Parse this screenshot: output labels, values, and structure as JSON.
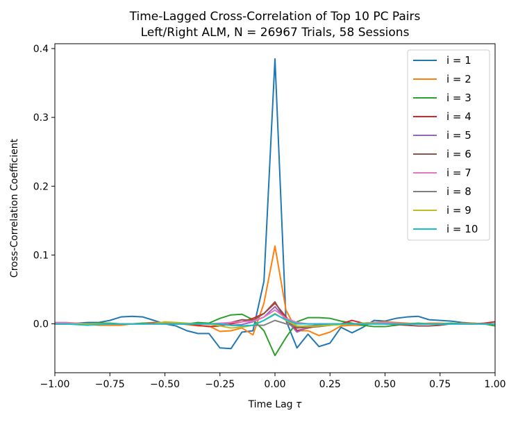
{
  "chart_data": {
    "type": "line",
    "title": "Time-Lagged Cross-Correlation of Top 10 PC Pairs",
    "subtitle": "Left/Right ALM, N = 26967 Trials, 58 Sessions",
    "xlabel": "Time Lag",
    "xlabel_symbol": "τ",
    "ylabel": "Cross-Correlation Coefficient",
    "xlim": [
      -1.0,
      1.0
    ],
    "ylim": [
      -0.071,
      0.407
    ],
    "x_ticks": [
      "-1.00",
      "-0.75",
      "-0.50",
      "-0.25",
      "0.00",
      "0.25",
      "0.50",
      "0.75",
      "1.00"
    ],
    "y_ticks": [
      "0.0",
      "0.1",
      "0.2",
      "0.3",
      "0.4"
    ],
    "grid": false,
    "legend_position": "top-right",
    "x": [
      -1.0,
      -0.95,
      -0.9,
      -0.85,
      -0.8,
      -0.75,
      -0.7,
      -0.65,
      -0.6,
      -0.55,
      -0.5,
      -0.45,
      -0.4,
      -0.35,
      -0.3,
      -0.25,
      -0.2,
      -0.15,
      -0.1,
      -0.05,
      0.0,
      0.05,
      0.1,
      0.15,
      0.2,
      0.25,
      0.3,
      0.35,
      0.4,
      0.45,
      0.5,
      0.55,
      0.6,
      0.65,
      0.7,
      0.75,
      0.8,
      0.85,
      0.9,
      0.95,
      1.0
    ],
    "series": [
      {
        "name": "i = 1",
        "color": "#1f77b4",
        "values": [
          0.0,
          0.0,
          0.001,
          0.002,
          0.002,
          0.005,
          0.01,
          0.011,
          0.01,
          0.005,
          0.0,
          -0.003,
          -0.01,
          -0.014,
          -0.014,
          -0.035,
          -0.036,
          -0.012,
          -0.01,
          0.062,
          0.385,
          0.005,
          -0.035,
          -0.015,
          -0.033,
          -0.028,
          -0.005,
          -0.013,
          -0.005,
          0.005,
          0.004,
          0.008,
          0.01,
          0.011,
          0.006,
          0.005,
          0.004,
          0.002,
          0.001,
          0.0,
          0.0
        ]
      },
      {
        "name": "i = 2",
        "color": "#ff7f0e",
        "values": [
          0.001,
          0.001,
          0.0,
          -0.001,
          -0.002,
          -0.002,
          -0.002,
          0.0,
          0.001,
          0.002,
          0.002,
          0.001,
          -0.001,
          -0.003,
          -0.003,
          -0.011,
          -0.01,
          -0.006,
          -0.016,
          0.03,
          0.113,
          0.02,
          -0.01,
          -0.01,
          -0.017,
          -0.012,
          -0.003,
          -0.002,
          -0.002,
          0.002,
          0.003,
          0.002,
          0.001,
          0.0,
          0.001,
          0.001,
          0.0,
          0.001,
          0.001,
          0.0,
          0.0
        ]
      },
      {
        "name": "i = 3",
        "color": "#2ca02c",
        "values": [
          0.0,
          0.0,
          0.0,
          0.0,
          0.001,
          0.001,
          0.0,
          0.0,
          0.001,
          0.001,
          0.0,
          0.0,
          0.0,
          0.002,
          0.001,
          0.008,
          0.013,
          0.014,
          0.006,
          -0.01,
          -0.046,
          -0.02,
          0.003,
          0.009,
          0.009,
          0.008,
          0.004,
          0.001,
          -0.002,
          -0.004,
          -0.004,
          -0.002,
          0.0,
          0.001,
          0.0,
          0.0,
          0.001,
          0.0,
          0.0,
          0.0,
          -0.003
        ]
      },
      {
        "name": "i = 4",
        "color": "#d62728",
        "values": [
          0.0,
          0.0,
          0.0,
          0.0,
          0.0,
          0.0,
          0.0,
          0.0,
          0.0,
          0.001,
          0.0,
          0.0,
          0.0,
          -0.002,
          -0.004,
          -0.003,
          0.0,
          0.003,
          0.008,
          0.015,
          0.03,
          0.01,
          -0.01,
          -0.006,
          -0.003,
          -0.002,
          0.0,
          0.005,
          0.001,
          0.002,
          0.001,
          0.0,
          0.0,
          0.0,
          0.0,
          0.0,
          0.0,
          0.0,
          0.0,
          0.001,
          0.003
        ]
      },
      {
        "name": "i = 5",
        "color": "#9467bd",
        "values": [
          0.0,
          0.0,
          0.0,
          0.0,
          0.0,
          0.0,
          0.0,
          0.0,
          0.0,
          0.0,
          0.0,
          0.0,
          0.0,
          0.0,
          0.0,
          -0.001,
          -0.002,
          -0.001,
          0.003,
          0.01,
          0.025,
          0.006,
          -0.012,
          -0.005,
          0.0,
          0.0,
          0.0,
          0.0,
          0.0,
          0.001,
          0.001,
          0.0,
          0.0,
          0.0,
          0.0,
          0.0,
          0.0,
          0.0,
          0.0,
          0.0,
          0.0
        ]
      },
      {
        "name": "i = 6",
        "color": "#8c564b",
        "values": [
          0.0,
          0.0,
          0.0,
          0.0,
          0.0,
          0.0,
          0.0,
          0.0,
          0.0,
          0.0,
          0.0,
          0.0,
          0.0,
          0.0,
          0.0,
          0.0,
          0.002,
          0.006,
          0.005,
          0.015,
          0.032,
          0.005,
          -0.006,
          -0.005,
          -0.004,
          -0.002,
          0.0,
          0.0,
          0.0,
          0.0,
          0.0,
          -0.001,
          -0.002,
          -0.003,
          -0.003,
          -0.002,
          0.0,
          0.0,
          0.0,
          0.0,
          0.0
        ]
      },
      {
        "name": "i = 7",
        "color": "#e377c2",
        "values": [
          0.002,
          0.002,
          0.001,
          0.0,
          0.0,
          0.0,
          0.0,
          0.0,
          0.0,
          0.0,
          0.0,
          0.0,
          0.0,
          0.0,
          0.0,
          0.001,
          0.002,
          0.003,
          0.004,
          0.01,
          0.02,
          0.008,
          0.002,
          0.0,
          0.0,
          0.0,
          0.0,
          0.0,
          0.001,
          0.002,
          0.002,
          0.001,
          0.0,
          0.0,
          0.0,
          0.0,
          0.0,
          0.0,
          0.0,
          0.0,
          0.0
        ]
      },
      {
        "name": "i = 8",
        "color": "#7f7f7f",
        "values": [
          0.0,
          0.0,
          0.0,
          0.0,
          0.0,
          0.0,
          0.0,
          0.0,
          0.0,
          0.0,
          0.0,
          0.0,
          0.0,
          0.0,
          0.0,
          0.0,
          -0.002,
          -0.003,
          -0.002,
          -0.002,
          0.005,
          0.0,
          -0.004,
          -0.003,
          -0.002,
          -0.001,
          0.0,
          0.0,
          0.0,
          0.0,
          0.0,
          0.0,
          0.0,
          0.0,
          0.0,
          0.0,
          0.0,
          0.0,
          0.0,
          0.0,
          0.0
        ]
      },
      {
        "name": "i = 9",
        "color": "#bcbd22",
        "values": [
          0.0,
          0.0,
          0.0,
          0.0,
          0.0,
          0.0,
          0.0,
          0.0,
          0.0,
          0.0,
          0.003,
          0.002,
          0.001,
          0.0,
          0.0,
          -0.003,
          -0.006,
          -0.005,
          -0.002,
          0.005,
          0.015,
          0.005,
          -0.003,
          -0.004,
          -0.003,
          -0.002,
          -0.001,
          0.0,
          0.001,
          0.001,
          0.0,
          0.0,
          0.0,
          0.0,
          0.0,
          0.0,
          0.0,
          0.0,
          0.0,
          0.0,
          0.0
        ]
      },
      {
        "name": "i = 10",
        "color": "#17becf",
        "values": [
          0.0,
          0.0,
          -0.001,
          -0.002,
          -0.001,
          0.0,
          0.0,
          0.0,
          0.0,
          0.0,
          0.0,
          0.0,
          0.0,
          0.0,
          0.0,
          0.0,
          -0.002,
          -0.003,
          -0.002,
          0.005,
          0.014,
          0.006,
          0.0,
          0.0,
          0.0,
          0.0,
          0.0,
          0.0,
          0.0,
          0.0,
          0.0,
          0.0,
          0.0,
          0.0,
          0.0,
          0.0,
          0.0,
          0.0,
          0.0,
          0.0,
          0.0
        ]
      }
    ]
  }
}
